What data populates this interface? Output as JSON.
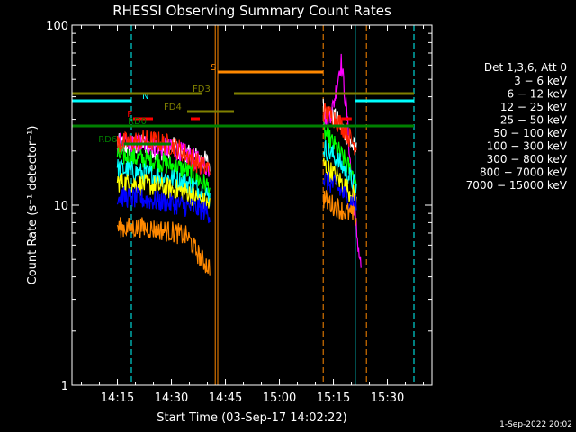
{
  "chart_data": {
    "type": "line",
    "title": "RHESSI Observing Summary Count Rates",
    "xlabel": "Start Time (03-Sep-17 14:02:22)",
    "ylabel": "Count Rate (s⁻¹ detector⁻¹)",
    "footer": "1-Sep-2022 20:02",
    "y_scale": "log",
    "ylim": [
      1,
      100
    ],
    "xlim": [
      0,
      100
    ],
    "x_unit": "minutes after 14:02:22",
    "x_ticks": [
      {
        "t": 12.63,
        "label": "14:15"
      },
      {
        "t": 27.63,
        "label": "14:30"
      },
      {
        "t": 42.63,
        "label": "14:45"
      },
      {
        "t": 57.63,
        "label": "15:00"
      },
      {
        "t": 72.63,
        "label": "15:15"
      },
      {
        "t": 87.63,
        "label": "15:30"
      }
    ],
    "y_ticks": [
      {
        "v": 1,
        "label": "1"
      },
      {
        "v": 10,
        "label": "10"
      },
      {
        "v": 100,
        "label": "100"
      }
    ],
    "legend": {
      "title": "Det 1,3,6, Att 0",
      "placement": "right",
      "entries": [
        {
          "label": "3 − 6 keV",
          "color": "#ffffff"
        },
        {
          "label": "6 − 12 keV",
          "color": "#ff00ff"
        },
        {
          "label": "12 − 25 keV",
          "color": "#00ff00"
        },
        {
          "label": "25 − 50 keV",
          "color": "#00ffff"
        },
        {
          "label": "50 − 100 keV",
          "color": "#ffff00"
        },
        {
          "label": "100 − 300 keV",
          "color": "#ff2200"
        },
        {
          "label": "300 − 800 keV",
          "color": "#0000ff"
        },
        {
          "label": "800 − 7000 keV",
          "color": "#ff8800"
        },
        {
          "label": "7000 − 15000 keV",
          "color": "#808000"
        }
      ]
    },
    "series": [
      {
        "name": "3 − 6 keV",
        "color": "#ffffff",
        "order": 0,
        "segments": [
          {
            "x": [
              12.6,
              16,
              20,
              24,
              28,
              32,
              36,
              38.3
            ],
            "y": [
              22,
              21,
              22,
              20,
              21,
              19,
              18,
              17
            ]
          },
          {
            "x": [
              69.8,
              71,
              72.5,
              74,
              75.5,
              77,
              79
            ],
            "y": [
              35,
              33,
              31,
              29,
              26,
              23,
              20
            ]
          }
        ]
      },
      {
        "name": "6 − 12 keV",
        "color": "#ff00ff",
        "order": 1,
        "segments": [
          {
            "x": [
              12.6,
              16,
              20,
              24,
              28,
              32,
              36,
              38.3
            ],
            "y": [
              22,
              21.5,
              22,
              21,
              20.5,
              19,
              17,
              16
            ]
          },
          {
            "x": [
              69.8,
              71,
              72.5,
              73.5,
              74.2,
              74.8,
              75.6,
              76.5,
              77.5,
              78.5,
              79.5,
              80.3
            ],
            "y": [
              31,
              30,
              35,
              45,
              56,
              62,
              45,
              30,
              15,
              9,
              6,
              4.5
            ]
          }
        ]
      },
      {
        "name": "12 − 25 keV",
        "color": "#00ff00",
        "order": 2,
        "segments": [
          {
            "x": [
              12.6,
              16,
              20,
              24,
              28,
              32,
              36,
              38.3
            ],
            "y": [
              19,
              18.5,
              18,
              17.5,
              16.5,
              15.5,
              13.5,
              12.5
            ]
          },
          {
            "x": [
              69.8,
              71,
              72.5,
              74,
              75.5,
              77,
              79
            ],
            "y": [
              26,
              24,
              22,
              20,
              18,
              16,
              14
            ]
          }
        ]
      },
      {
        "name": "25 − 50 keV",
        "color": "#00ffff",
        "order": 3,
        "segments": [
          {
            "x": [
              12.6,
              16,
              20,
              24,
              28,
              32,
              36,
              38.3
            ],
            "y": [
              16,
              15.5,
              15,
              14.5,
              14,
              13.3,
              12,
              11
            ]
          },
          {
            "x": [
              69.8,
              71,
              72.5,
              74,
              75.5,
              77,
              79
            ],
            "y": [
              21,
              20,
              19,
              17.5,
              16,
              14.5,
              12.5
            ]
          }
        ]
      },
      {
        "name": "50 − 100 keV",
        "color": "#ffff00",
        "order": 4,
        "segments": [
          {
            "x": [
              12.6,
              16,
              20,
              24,
              28,
              32,
              36,
              38.3
            ],
            "y": [
              13.5,
              13.2,
              13,
              12.7,
              12.2,
              11.8,
              10.5,
              10
            ]
          },
          {
            "x": [
              69.8,
              71,
              72.5,
              74,
              75.5,
              77,
              79
            ],
            "y": [
              17,
              16,
              15,
              14,
              13,
              12,
              11
            ]
          }
        ]
      },
      {
        "name": "100 − 300 keV",
        "color": "#ff2200",
        "order": 5,
        "segments": [
          {
            "x": [
              12.6,
              16,
              20,
              24,
              28,
              32,
              36,
              38.3
            ],
            "y": [
              22,
              22.5,
              23,
              22.5,
              21.5,
              19,
              16.5,
              16
            ]
          },
          {
            "x": [
              69.8,
              71,
              72.5,
              74,
              75.5,
              77,
              79
            ],
            "y": [
              33,
              32,
              31,
              29,
              27,
              24,
              21
            ]
          }
        ]
      },
      {
        "name": "300 − 800 keV",
        "color": "#0000ff",
        "order": 6,
        "segments": [
          {
            "x": [
              12.6,
              16,
              20,
              24,
              28,
              32,
              36,
              38.3
            ],
            "y": [
              11.2,
              11,
              10.8,
              10.5,
              10.2,
              9.8,
              9.5,
              9
            ]
          },
          {
            "x": [
              69.8,
              71,
              72.5,
              74,
              75.5,
              77,
              79
            ],
            "y": [
              14,
              13.5,
              13,
              12.3,
              11.5,
              10.8,
              10
            ]
          }
        ]
      },
      {
        "name": "800 − 7000 keV",
        "color": "#ff8800",
        "order": 7,
        "segments": [
          {
            "x": [
              12.6,
              16,
              20,
              24,
              28,
              32,
              36,
              38.3
            ],
            "y": [
              7.5,
              7.5,
              7.5,
              7.3,
              7.1,
              6.7,
              5,
              4.5
            ]
          },
          {
            "x": [
              69.8,
              71,
              72.5,
              74,
              75.5,
              77,
              79
            ],
            "y": [
              11,
              10.5,
              10,
              9.7,
              9.3,
              9,
              8.5
            ]
          }
        ]
      }
    ],
    "flag_bars": [
      {
        "label": "N",
        "color": "#00ffff",
        "segments": [
          [
            0,
            16.5
          ],
          [
            78.7,
            95
          ]
        ],
        "level": 0.79,
        "label_at": 19.5
      },
      {
        "label": "S",
        "color": "#ff8800",
        "segments": [
          [
            40.5,
            69.8
          ]
        ],
        "level": 0.87,
        "label_at": 38.5
      },
      {
        "label": "F",
        "color": "#ff0000",
        "segments": [
          [
            17,
            22.5
          ],
          [
            33,
            35.5
          ],
          [
            74.8,
            77.7
          ]
        ],
        "level": 0.74,
        "label_at": 15.3
      },
      {
        "label": "FD3",
        "color": "#808000",
        "segments": [
          [
            0,
            36
          ],
          [
            45,
            95
          ]
        ],
        "level": 0.81,
        "label_at": 33.5
      },
      {
        "label": "FD4",
        "color": "#808000",
        "segments": [
          [
            32,
            45
          ]
        ],
        "level": 0.76,
        "label_at": 25.5
      },
      {
        "label": "RD0",
        "color": "#008000",
        "segments": [
          [
            0,
            95
          ]
        ],
        "level": 0.72,
        "label_at": 15.5
      },
      {
        "label": "RD6",
        "color": "#008000",
        "segments": [
          [
            14.4,
            27.5
          ]
        ],
        "level": 0.67,
        "label_at": 7.3
      }
    ],
    "marker_lines": [
      {
        "t": 16.5,
        "color": "#00ffff",
        "style": "dashed"
      },
      {
        "t": 95,
        "color": "#00ffff",
        "style": "dashed"
      },
      {
        "t": 78.7,
        "color": "#00ffff",
        "style": "solid"
      },
      {
        "t": 39.8,
        "color": "#ff8800",
        "style": "solid"
      },
      {
        "t": 40.5,
        "color": "#ff8800",
        "style": "solid"
      },
      {
        "t": 69.8,
        "color": "#ff8800",
        "style": "dashed"
      },
      {
        "t": 81.8,
        "color": "#ff8800",
        "style": "dashed"
      }
    ]
  }
}
